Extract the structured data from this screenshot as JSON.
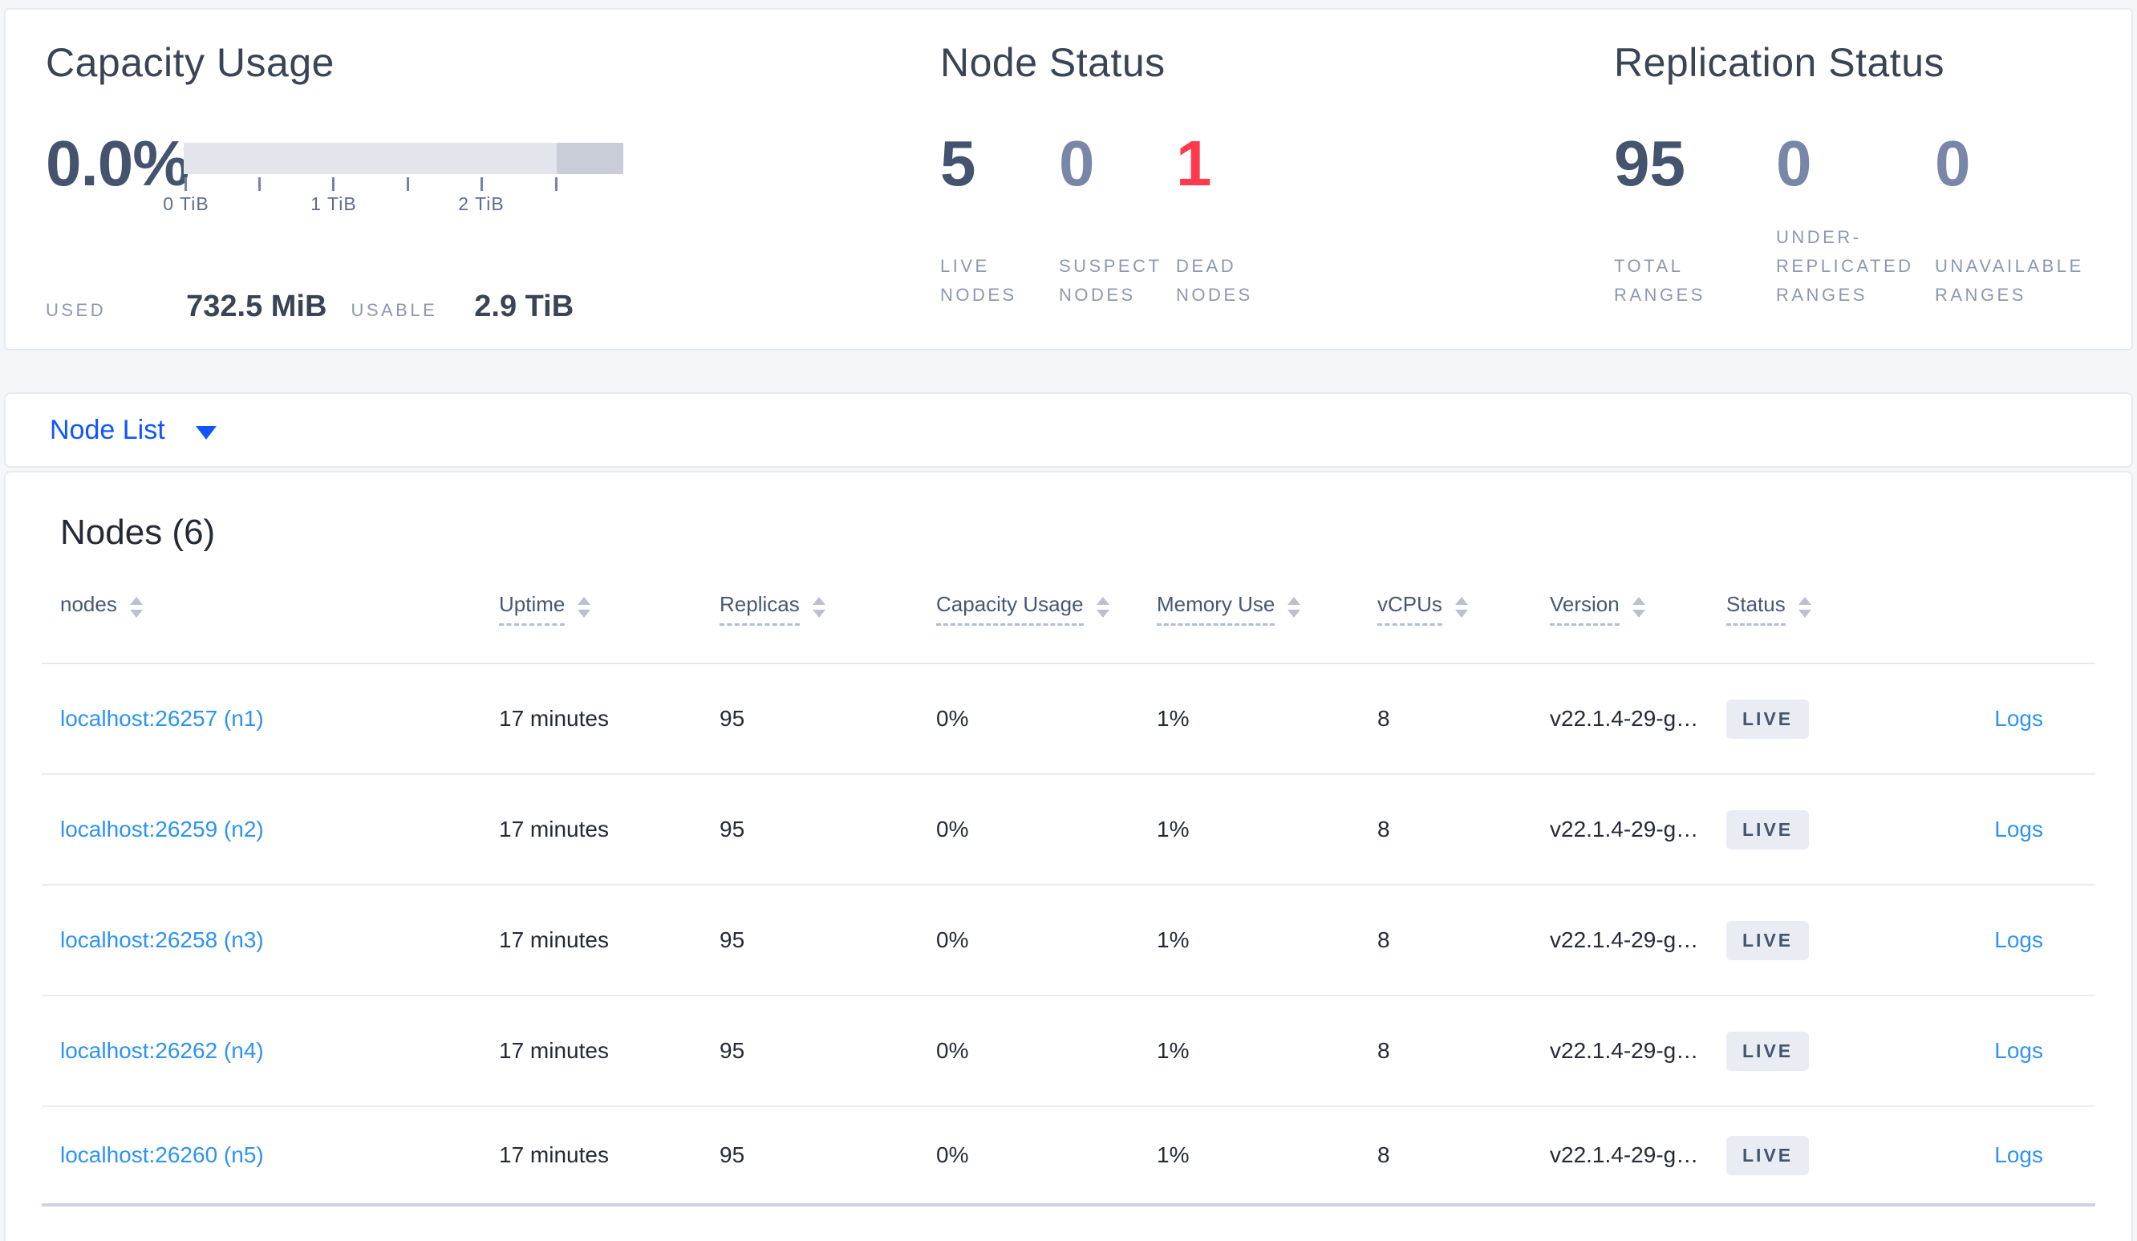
{
  "summary": {
    "capacity": {
      "title": "Capacity Usage",
      "percent": "0.0%",
      "tick_labels": [
        "0 TiB",
        "1 TiB",
        "2 TiB"
      ],
      "used_label": "USED",
      "used_value": "732.5 MiB",
      "usable_label": "USABLE",
      "usable_value": "2.9 TiB"
    },
    "node_status": {
      "title": "Node Status",
      "stats": [
        {
          "value": "5",
          "label": "LIVE\nNODES",
          "color": "#44536e"
        },
        {
          "value": "0",
          "label": "SUSPECT\nNODES",
          "color": "#7887a8"
        },
        {
          "value": "1",
          "label": "DEAD\nNODES",
          "color": "#ff3a4d"
        }
      ]
    },
    "replication_status": {
      "title": "Replication Status",
      "stats": [
        {
          "value": "95",
          "label": "TOTAL\nRANGES",
          "color": "#44536e"
        },
        {
          "value": "0",
          "label": "UNDER-\nREPLICATED\nRANGES",
          "color": "#7887a8"
        },
        {
          "value": "0",
          "label": "UNAVAILABLE\nRANGES",
          "color": "#7887a8"
        }
      ]
    }
  },
  "view_selector": {
    "label": "Node List"
  },
  "nodes_table": {
    "title": "Nodes (6)",
    "columns": [
      "nodes",
      "Uptime",
      "Replicas",
      "Capacity Usage",
      "Memory Use",
      "vCPUs",
      "Version",
      "Status"
    ],
    "rows": [
      {
        "node": "localhost:26257 (n1)",
        "uptime": "17 minutes",
        "replicas": "95",
        "capacity_usage": "0%",
        "memory_use": "1%",
        "vcpus": "8",
        "version": "v22.1.4-29-g…",
        "status": "LIVE",
        "logs": "Logs"
      },
      {
        "node": "localhost:26259 (n2)",
        "uptime": "17 minutes",
        "replicas": "95",
        "capacity_usage": "0%",
        "memory_use": "1%",
        "vcpus": "8",
        "version": "v22.1.4-29-g…",
        "status": "LIVE",
        "logs": "Logs"
      },
      {
        "node": "localhost:26258 (n3)",
        "uptime": "17 minutes",
        "replicas": "95",
        "capacity_usage": "0%",
        "memory_use": "1%",
        "vcpus": "8",
        "version": "v22.1.4-29-g…",
        "status": "LIVE",
        "logs": "Logs"
      },
      {
        "node": "localhost:26262 (n4)",
        "uptime": "17 minutes",
        "replicas": "95",
        "capacity_usage": "0%",
        "memory_use": "1%",
        "vcpus": "8",
        "version": "v22.1.4-29-g…",
        "status": "LIVE",
        "logs": "Logs"
      },
      {
        "node": "localhost:26260 (n5)",
        "uptime": "17 minutes",
        "replicas": "95",
        "capacity_usage": "0%",
        "memory_use": "1%",
        "vcpus": "8",
        "version": "v22.1.4-29-g…",
        "status": "LIVE",
        "logs": "Logs"
      }
    ]
  },
  "colors": {
    "selector_link": "#1155ff",
    "table_link": "#2d93f2",
    "dead_node": "#ff3a4d",
    "live_badge_bg": "#e9edf3",
    "capacity_bar_light": "#e3e5ec",
    "capacity_bar_dark": "#c9cdd8"
  }
}
